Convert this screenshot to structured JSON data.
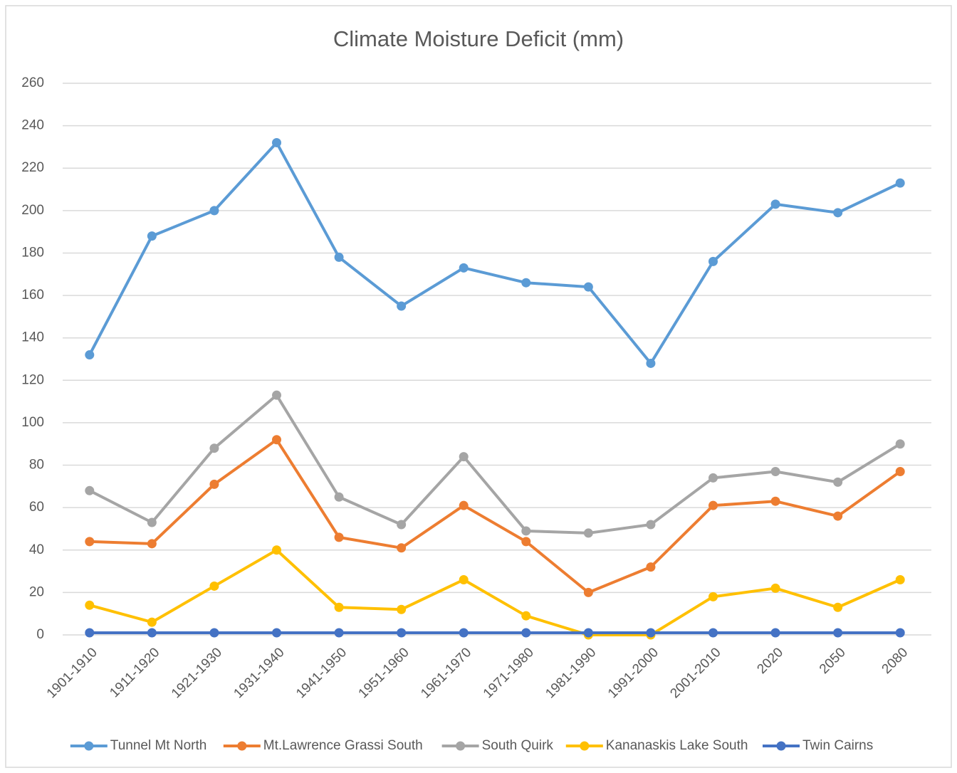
{
  "chart_data": {
    "type": "line",
    "title": "Climate Moisture Deficit (mm)",
    "categories": [
      "1901-1910",
      "1911-1920",
      "1921-1930",
      "1931-1940",
      "1941-1950",
      "1951-1960",
      "1961-1970",
      "1971-1980",
      "1981-1990",
      "1991-2000",
      "2001-2010",
      "2020",
      "2050",
      "2080"
    ],
    "series": [
      {
        "name": "Tunnel Mt North",
        "color": "#5b9bd5",
        "values": [
          132,
          188,
          200,
          232,
          178,
          155,
          173,
          166,
          164,
          128,
          176,
          203,
          199,
          213
        ]
      },
      {
        "name": "Mt.Lawrence Grassi South",
        "color": "#ed7d31",
        "values": [
          44,
          43,
          71,
          92,
          46,
          41,
          61,
          44,
          20,
          32,
          61,
          63,
          56,
          77
        ]
      },
      {
        "name": "South Quirk",
        "color": "#a5a5a5",
        "values": [
          68,
          53,
          88,
          113,
          65,
          52,
          84,
          49,
          48,
          52,
          74,
          77,
          72,
          90
        ]
      },
      {
        "name": "Kananaskis Lake South",
        "color": "#ffc000",
        "values": [
          14,
          6,
          23,
          40,
          13,
          12,
          26,
          9,
          0,
          0,
          18,
          22,
          13,
          26
        ]
      },
      {
        "name": "Twin Cairns",
        "color": "#4472c4",
        "values": [
          1,
          1,
          1,
          1,
          1,
          1,
          1,
          1,
          1,
          1,
          1,
          1,
          1,
          1
        ]
      }
    ],
    "ylim": [
      0,
      260
    ],
    "yticks": [
      0,
      20,
      40,
      60,
      80,
      100,
      120,
      140,
      160,
      180,
      200,
      220,
      240,
      260
    ],
    "grid": true,
    "legend": "bottom"
  }
}
